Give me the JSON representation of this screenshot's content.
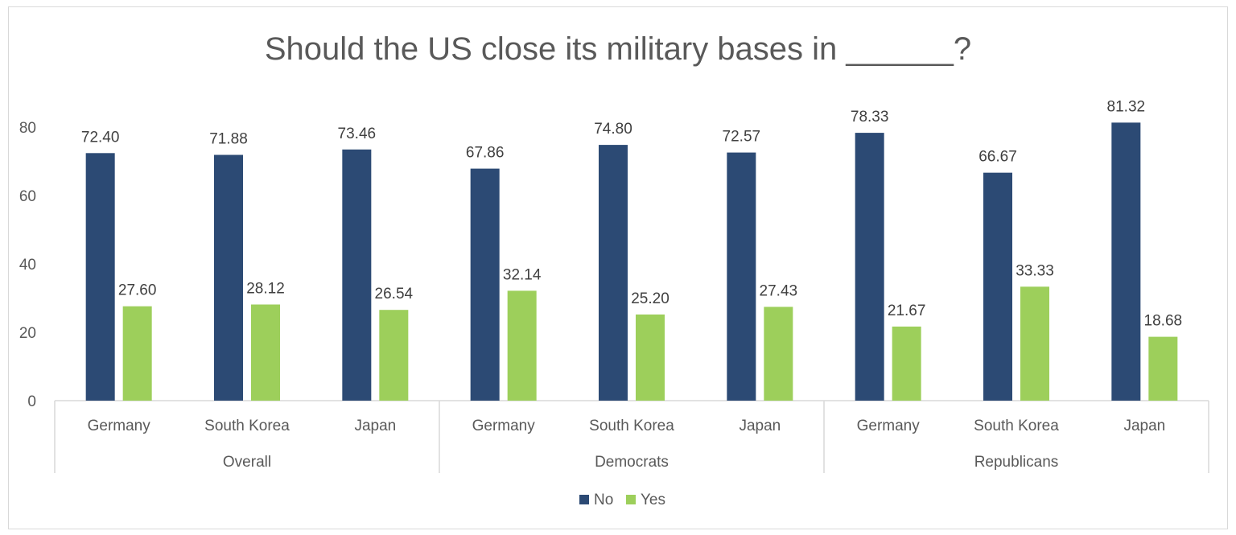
{
  "chart_data": {
    "type": "bar",
    "title": "Should the US close its military bases in ______?",
    "groups": [
      {
        "label": "Overall",
        "categories": [
          "Germany",
          "South Korea",
          "Japan"
        ]
      },
      {
        "label": "Democrats",
        "categories": [
          "Germany",
          "South Korea",
          "Japan"
        ]
      },
      {
        "label": "Republicans",
        "categories": [
          "Germany",
          "South Korea",
          "Japan"
        ]
      }
    ],
    "series": [
      {
        "name": "No",
        "color": "#2c4a74",
        "values": [
          72.4,
          71.88,
          73.46,
          67.86,
          74.8,
          72.57,
          78.33,
          66.67,
          81.32
        ],
        "labels": [
          "72.40",
          "71.88",
          "73.46",
          "67.86",
          "74.80",
          "72.57",
          "78.33",
          "66.67",
          "81.32"
        ]
      },
      {
        "name": "Yes",
        "color": "#9dcf5b",
        "values": [
          27.6,
          28.12,
          26.54,
          32.14,
          25.2,
          27.43,
          21.67,
          33.33,
          18.68
        ],
        "labels": [
          "27.60",
          "28.12",
          "26.54",
          "32.14",
          "25.20",
          "27.43",
          "21.67",
          "33.33",
          "18.68"
        ]
      }
    ],
    "ylim": [
      0,
      80
    ],
    "yticks": [
      "0",
      "20",
      "40",
      "60",
      "80"
    ],
    "grid": false,
    "legend": "bottom-center"
  }
}
